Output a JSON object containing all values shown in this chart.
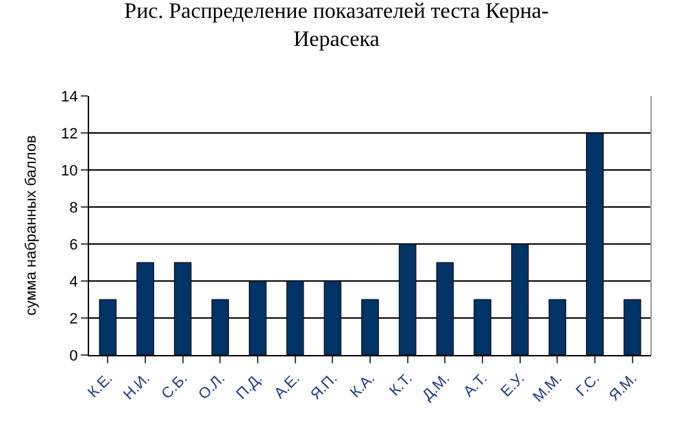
{
  "chart_data": {
    "type": "bar",
    "title": "Рис. Распределение показателей теста Керна-Иерасека",
    "ylabel": "сумма набранных баллов",
    "categories": [
      "К.Е.",
      "Н.И.",
      "С.Б.",
      "О.Л.",
      "П.Д.",
      "А.Е.",
      "Я.П.",
      "К.А.",
      "К.Т.",
      "Д.М.",
      "А.Т.",
      "Е.У.",
      "М.М.",
      "Г.С.",
      "Я.М."
    ],
    "values": [
      3,
      5,
      5,
      3,
      4,
      4,
      4,
      3,
      6,
      5,
      3,
      6,
      3,
      12,
      3
    ],
    "color": "#003366",
    "ylim": [
      0,
      14
    ],
    "yticks": [
      0,
      2,
      4,
      6,
      8,
      10,
      12,
      14
    ],
    "grid": "y",
    "legend": false
  }
}
